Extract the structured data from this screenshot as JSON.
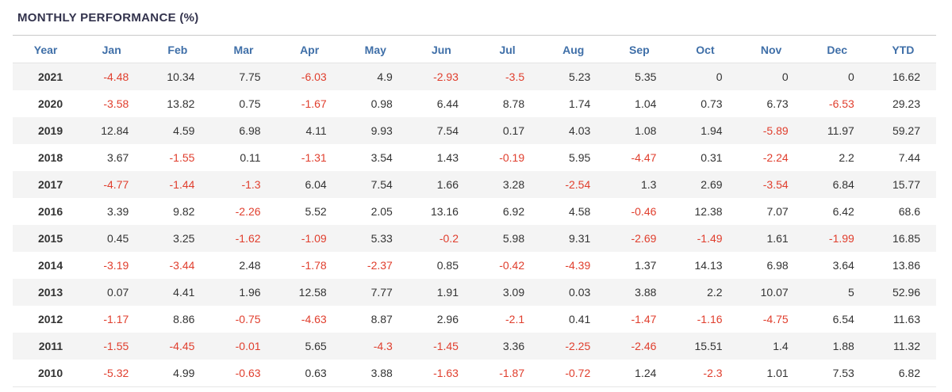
{
  "title": "MONTHLY PERFORMANCE (%)",
  "colors": {
    "title_text": "#33334d",
    "header_text": "#3f6fa8",
    "positive_value": "#333333",
    "negative_value": "#e03e2d",
    "row_stripe": "#f4f4f4",
    "divider": "#c8c8c8"
  },
  "chart_data": {
    "type": "table",
    "title": "MONTHLY PERFORMANCE (%)",
    "columns": [
      "Year",
      "Jan",
      "Feb",
      "Mar",
      "Apr",
      "May",
      "Jun",
      "Jul",
      "Aug",
      "Sep",
      "Oct",
      "Nov",
      "Dec",
      "YTD"
    ],
    "rows": [
      [
        "2021",
        -4.48,
        10.34,
        7.75,
        -6.03,
        4.9,
        -2.93,
        -3.5,
        5.23,
        5.35,
        0,
        0,
        0,
        16.62
      ],
      [
        "2020",
        -3.58,
        13.82,
        0.75,
        -1.67,
        0.98,
        6.44,
        8.78,
        1.74,
        1.04,
        0.73,
        6.73,
        -6.53,
        29.23
      ],
      [
        "2019",
        12.84,
        4.59,
        6.98,
        4.11,
        9.93,
        7.54,
        0.17,
        4.03,
        1.08,
        1.94,
        -5.89,
        11.97,
        59.27
      ],
      [
        "2018",
        3.67,
        -1.55,
        0.11,
        -1.31,
        3.54,
        1.43,
        -0.19,
        5.95,
        -4.47,
        0.31,
        -2.24,
        2.2,
        7.44
      ],
      [
        "2017",
        -4.77,
        -1.44,
        -1.3,
        6.04,
        7.54,
        1.66,
        3.28,
        -2.54,
        1.3,
        2.69,
        -3.54,
        6.84,
        15.77
      ],
      [
        "2016",
        3.39,
        9.82,
        -2.26,
        5.52,
        2.05,
        13.16,
        6.92,
        4.58,
        -0.46,
        12.38,
        7.07,
        6.42,
        68.6
      ],
      [
        "2015",
        0.45,
        3.25,
        -1.62,
        -1.09,
        5.33,
        -0.2,
        5.98,
        9.31,
        -2.69,
        -1.49,
        1.61,
        -1.99,
        16.85
      ],
      [
        "2014",
        -3.19,
        -3.44,
        2.48,
        -1.78,
        -2.37,
        0.85,
        -0.42,
        -4.39,
        1.37,
        14.13,
        6.98,
        3.64,
        13.86
      ],
      [
        "2013",
        0.07,
        4.41,
        1.96,
        12.58,
        7.77,
        1.91,
        3.09,
        0.03,
        3.88,
        2.2,
        10.07,
        5,
        52.96
      ],
      [
        "2012",
        -1.17,
        8.86,
        -0.75,
        -4.63,
        8.87,
        2.96,
        -2.1,
        0.41,
        -1.47,
        -1.16,
        -4.75,
        6.54,
        11.63
      ],
      [
        "2011",
        -1.55,
        -4.45,
        -0.01,
        5.65,
        -4.3,
        -1.45,
        3.36,
        -2.25,
        -2.46,
        15.51,
        1.4,
        1.88,
        11.32
      ],
      [
        "2010",
        -5.32,
        4.99,
        -0.63,
        0.63,
        3.88,
        -1.63,
        -1.87,
        -0.72,
        1.24,
        -2.3,
        1.01,
        7.53,
        6.82
      ]
    ],
    "layout_hints": {
      "negative_values_in_red": true,
      "alternating_row_stripes": true,
      "first_column_bold": true
    }
  }
}
